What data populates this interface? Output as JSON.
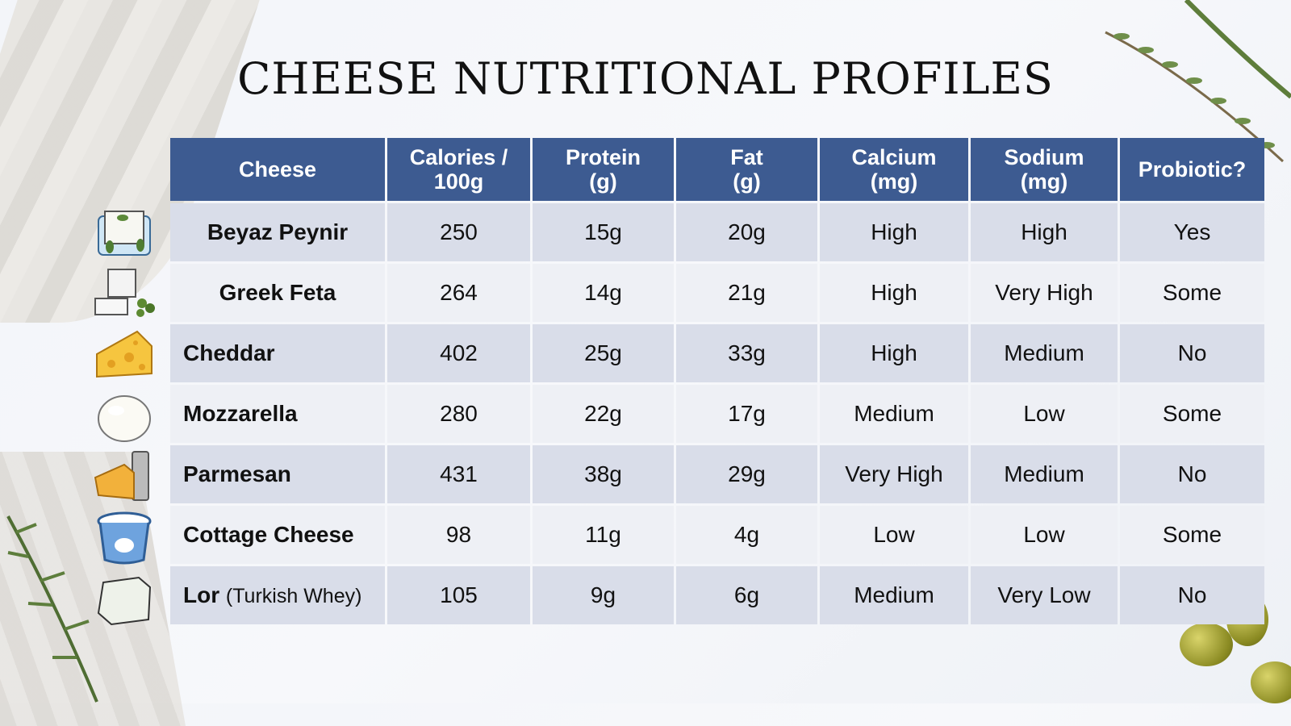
{
  "title": "CHEESE NUTRITIONAL PROFILES",
  "table": {
    "headers": [
      "Cheese",
      "Calories / 100g",
      "Protein (g)",
      "Fat (g)",
      "Calcium (mg)",
      "Sodium (mg)",
      "Probiotic?"
    ],
    "header_lines": [
      [
        "Cheese"
      ],
      [
        "Calories /",
        "100g"
      ],
      [
        "Protein",
        "(g)"
      ],
      [
        "Fat",
        "(g)"
      ],
      [
        "Calcium",
        "(mg)"
      ],
      [
        "Sodium",
        "(mg)"
      ],
      [
        "Probiotic?"
      ]
    ],
    "rows": [
      {
        "name": "Beyaz Peynir",
        "note": "",
        "icon": "brined-white-cheese-icon",
        "cells": [
          "250",
          "15g",
          "20g",
          "High",
          "High",
          "Yes"
        ]
      },
      {
        "name": "Greek Feta",
        "note": "",
        "icon": "feta-cubes-icon",
        "cells": [
          "264",
          "14g",
          "21g",
          "High",
          "Very High",
          "Some"
        ]
      },
      {
        "name": "Cheddar",
        "note": "",
        "icon": "cheddar-wedge-icon",
        "cells": [
          "402",
          "25g",
          "33g",
          "High",
          "Medium",
          "No"
        ]
      },
      {
        "name": "Mozzarella",
        "note": "",
        "icon": "mozzarella-ball-icon",
        "cells": [
          "280",
          "22g",
          "17g",
          "Medium",
          "Low",
          "Some"
        ]
      },
      {
        "name": "Parmesan",
        "note": "",
        "icon": "parmesan-grater-icon",
        "cells": [
          "431",
          "38g",
          "29g",
          "Very High",
          "Medium",
          "No"
        ]
      },
      {
        "name": "Cottage Cheese",
        "note": "",
        "icon": "cottage-cheese-tub-icon",
        "cells": [
          "98",
          "11g",
          "4g",
          "Low",
          "Low",
          "Some"
        ]
      },
      {
        "name": "Lor",
        "note": "(Turkish Whey)",
        "icon": "lor-cheese-block-icon",
        "cells": [
          "105",
          "9g",
          "6g",
          "Medium",
          "Very Low",
          "No"
        ]
      }
    ]
  },
  "colors": {
    "header": "#3d5b91",
    "row_odd": "#d9dde9",
    "row_even": "#eef0f5"
  }
}
